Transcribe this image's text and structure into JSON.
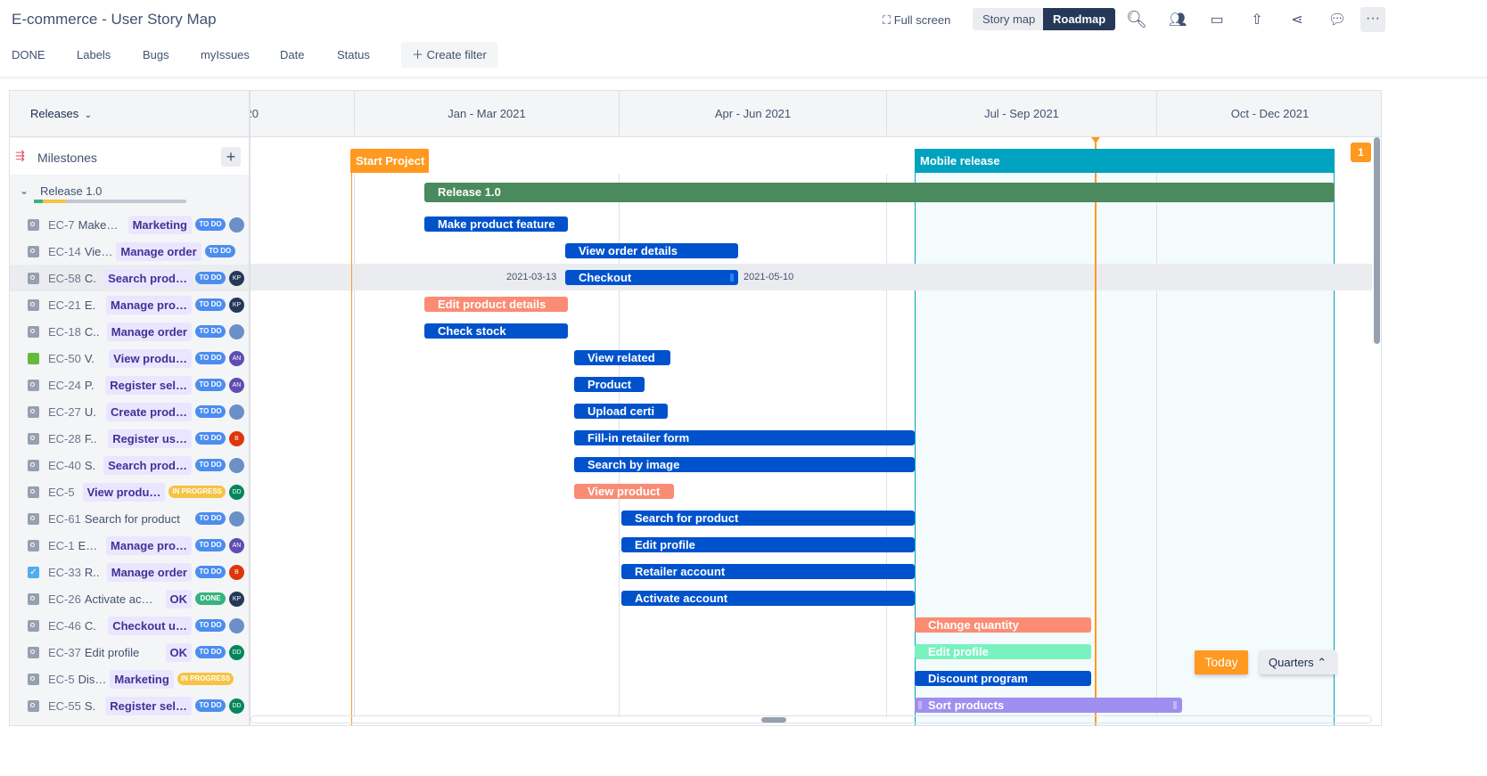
{
  "header": {
    "title": "E-commerce - User Story Map",
    "fullscreen": "Full screen",
    "story_map": "Story map",
    "roadmap": "Roadmap"
  },
  "filters": [
    "DONE",
    "Labels",
    "Bugs",
    "myIssues",
    "Date",
    "Status"
  ],
  "create_filter": "Create filter",
  "left": {
    "releases": "Releases",
    "milestones": "Milestones",
    "release": "Release 1.0",
    "release_progress": {
      "done": 0.06,
      "in_progress": 0.15
    }
  },
  "quarters": [
    "20",
    "Jan - Mar 2021",
    "Apr - Jun 2021",
    "Jul - Sep 2021",
    "Oct - Dec 2021"
  ],
  "issues": [
    {
      "key": "EC-7",
      "summary": "Make…",
      "label": "Marketing",
      "status": "TO DO",
      "avatar": "photo"
    },
    {
      "key": "EC-14",
      "summary": "Vie…",
      "label": "Manage order",
      "status": "TO DO",
      "avatar": ""
    },
    {
      "key": "EC-58",
      "summary": "C.",
      "label": "Search prod…",
      "status": "TO DO",
      "avatar": "KP"
    },
    {
      "key": "EC-21",
      "summary": "E.",
      "label": "Manage pro…",
      "status": "TO DO",
      "avatar": "KP"
    },
    {
      "key": "EC-18",
      "summary": "C..",
      "label": "Manage order",
      "status": "TO DO",
      "avatar": "photo"
    },
    {
      "key": "EC-50",
      "summary": "V.",
      "label": "View produ…",
      "status": "TO DO",
      "avatar": "AN",
      "type": "story"
    },
    {
      "key": "EC-24",
      "summary": "P.",
      "label": "Register sel…",
      "status": "TO DO",
      "avatar": "AN"
    },
    {
      "key": "EC-27",
      "summary": "U.",
      "label": "Create prod…",
      "status": "TO DO",
      "avatar": "photo"
    },
    {
      "key": "EC-28",
      "summary": "F..",
      "label": "Register us…",
      "status": "TO DO",
      "avatar": "B"
    },
    {
      "key": "EC-40",
      "summary": "S.",
      "label": "Search prod…",
      "status": "TO DO",
      "avatar": "photo"
    },
    {
      "key": "EC-5",
      "summary": "",
      "label": "View produ…",
      "status": "IN PROGRESS",
      "avatar": "DD"
    },
    {
      "key": "EC-61",
      "summary": "Search for product",
      "label": "",
      "status": "TO DO",
      "avatar": "photo"
    },
    {
      "key": "EC-1",
      "summary": "E…",
      "label": "Manage pro…",
      "status": "TO DO",
      "avatar": "AN"
    },
    {
      "key": "EC-33",
      "summary": "R..",
      "label": "Manage order",
      "status": "TO DO",
      "avatar": "B",
      "type": "checked"
    },
    {
      "key": "EC-26",
      "summary": "Activate ac…",
      "label": "OK",
      "status": "DONE",
      "avatar": "KP"
    },
    {
      "key": "EC-46",
      "summary": "C.",
      "label": "Checkout u…",
      "status": "TO DO",
      "avatar": "photo"
    },
    {
      "key": "EC-37",
      "summary": "Edit profile",
      "label": "OK",
      "status": "TO DO",
      "avatar": "DD"
    },
    {
      "key": "EC-5",
      "summary": "Dis…",
      "label": "Marketing",
      "status": "IN PROGRESS",
      "avatar": ""
    },
    {
      "key": "EC-55",
      "summary": "S.",
      "label": "Register sel…",
      "status": "TO DO",
      "avatar": "DD"
    }
  ],
  "milestones": [
    {
      "label": "Start Project",
      "color": "#ff991f"
    },
    {
      "label": "Mobile release",
      "color": "#00a3bf"
    }
  ],
  "release_bar": {
    "label": "Release 1.0",
    "color": "#4a8a5c"
  },
  "bars": [
    {
      "label": "Make product feature",
      "color": "#0052cc"
    },
    {
      "label": "View order details",
      "color": "#0052cc"
    },
    {
      "label": "Checkout",
      "color": "#0052cc",
      "start": "2021-03-13",
      "end": "2021-05-10"
    },
    {
      "label": "Edit product details",
      "color": "#fa8c74"
    },
    {
      "label": "Check stock",
      "color": "#0052cc"
    },
    {
      "label": "View related",
      "color": "#0052cc"
    },
    {
      "label": "Product",
      "color": "#0052cc"
    },
    {
      "label": "Upload certi",
      "color": "#0052cc"
    },
    {
      "label": "Fill-in retailer form",
      "color": "#0052cc"
    },
    {
      "label": "Search by image",
      "color": "#0052cc"
    },
    {
      "label": "View product",
      "color": "#fa8c74"
    },
    {
      "label": "Search for product",
      "color": "#0052cc"
    },
    {
      "label": "Edit profile",
      "color": "#0052cc"
    },
    {
      "label": "Retailer account",
      "color": "#0052cc"
    },
    {
      "label": "Activate account",
      "color": "#0052cc"
    },
    {
      "label": "Change quantity",
      "color": "#fa8c74"
    },
    {
      "label": "Edit profile",
      "color": "#79f2c0"
    },
    {
      "label": "Discount program",
      "color": "#0052cc"
    },
    {
      "label": "Sort products",
      "color": "#9f8fef"
    }
  ],
  "badge": "1",
  "today": "Today",
  "zoom": "Quarters"
}
